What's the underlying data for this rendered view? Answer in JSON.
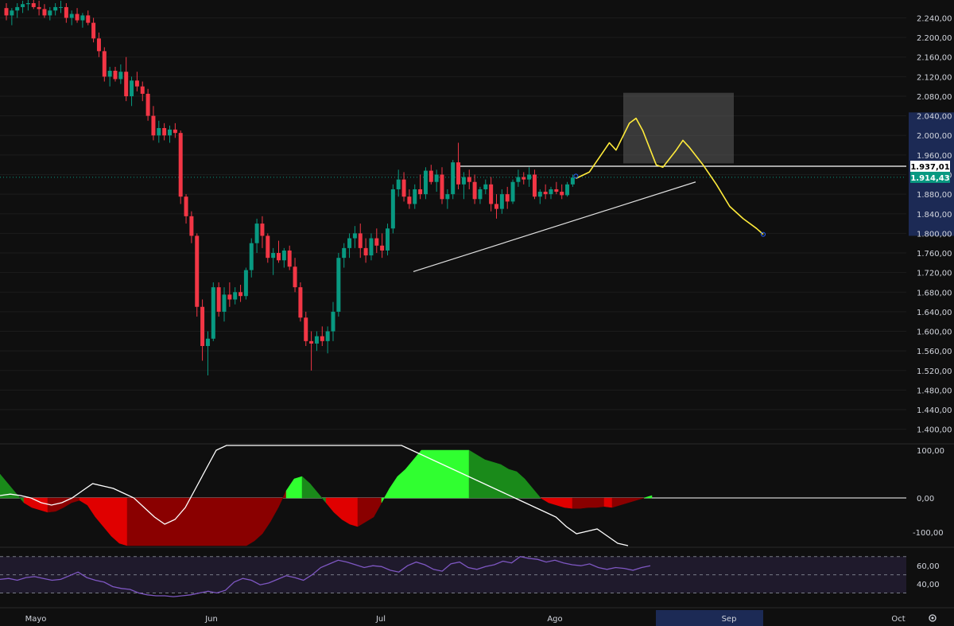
{
  "colors": {
    "background": "#0f0f0f",
    "up": "#089981",
    "down": "#f23645",
    "grid": "#1c1c1c",
    "projection": "#ffeb3b",
    "trendline": "#e0e0e0",
    "resistance": "#ffffff",
    "box": "#5d5d5d",
    "rsi": "#7e57c2",
    "rsi_band": "#2a2140",
    "histogram_up_bright": "#30ff30",
    "histogram_up_dark": "#1a8a1a",
    "histogram_down_bright": "#e00000",
    "histogram_down_dark": "#8a0000",
    "current_price_badge": "#089981",
    "axis_highlight": "#1c2a55"
  },
  "price_axis": {
    "ticks": [
      "2.240,00",
      "2.200,00",
      "2.160,00",
      "2.120,00",
      "2.080,00",
      "2.040,00",
      "2.000,00",
      "1.960,00",
      "1.920,00",
      "1.880,00",
      "1.840,00",
      "1.800,00",
      "1.760,00",
      "1.720,00",
      "1.680,00",
      "1.640,00",
      "1.600,00",
      "1.560,00",
      "1.520,00",
      "1.480,00",
      "1.440,00",
      "1.400,00"
    ],
    "resistance_label": "1.937,01",
    "current_label": "1.914,43"
  },
  "osc_axis": {
    "ticks": [
      "100,00",
      "0,00",
      "-100,00"
    ]
  },
  "rsi_axis": {
    "ticks": [
      "60,00",
      "40,00"
    ]
  },
  "time_axis": {
    "labels": [
      "Mayo",
      "Jun",
      "Jul",
      "Ago",
      "Sep",
      "Oct"
    ]
  },
  "chart_data": {
    "type": "candlestick",
    "ylim": [
      1380,
      2270
    ],
    "resistance_level": 1937.01,
    "last_price": 1914.43,
    "candles": [
      [
        2260,
        2270,
        2235,
        2245
      ],
      [
        2245,
        2260,
        2225,
        2255
      ],
      [
        2255,
        2270,
        2240,
        2262
      ],
      [
        2262,
        2275,
        2250,
        2268
      ],
      [
        2268,
        2280,
        2255,
        2270
      ],
      [
        2270,
        2280,
        2258,
        2262
      ],
      [
        2262,
        2275,
        2245,
        2258
      ],
      [
        2258,
        2268,
        2240,
        2245
      ],
      [
        2245,
        2262,
        2235,
        2255
      ],
      [
        2255,
        2270,
        2245,
        2262
      ],
      [
        2262,
        2275,
        2250,
        2262
      ],
      [
        2262,
        2270,
        2230,
        2240
      ],
      [
        2240,
        2255,
        2225,
        2248
      ],
      [
        2248,
        2260,
        2230,
        2235
      ],
      [
        2235,
        2250,
        2220,
        2245
      ],
      [
        2245,
        2255,
        2225,
        2230
      ],
      [
        2230,
        2240,
        2190,
        2198
      ],
      [
        2198,
        2210,
        2160,
        2172
      ],
      [
        2172,
        2180,
        2110,
        2120
      ],
      [
        2120,
        2140,
        2100,
        2132
      ],
      [
        2132,
        2140,
        2110,
        2115
      ],
      [
        2115,
        2145,
        2105,
        2130
      ],
      [
        2130,
        2160,
        2070,
        2080
      ],
      [
        2080,
        2120,
        2060,
        2112
      ],
      [
        2112,
        2130,
        2090,
        2100
      ],
      [
        2100,
        2110,
        2070,
        2085
      ],
      [
        2085,
        2095,
        2030,
        2040
      ],
      [
        2040,
        2060,
        1990,
        2000
      ],
      [
        2000,
        2030,
        1985,
        2015
      ],
      [
        2015,
        2025,
        1990,
        2000
      ],
      [
        2000,
        2020,
        1985,
        2012
      ],
      [
        2012,
        2025,
        1995,
        2005
      ],
      [
        2005,
        2010,
        1860,
        1875
      ],
      [
        1875,
        1880,
        1820,
        1835
      ],
      [
        1835,
        1845,
        1780,
        1795
      ],
      [
        1795,
        1800,
        1630,
        1650
      ],
      [
        1650,
        1665,
        1540,
        1570
      ],
      [
        1570,
        1600,
        1510,
        1585
      ],
      [
        1585,
        1700,
        1580,
        1690
      ],
      [
        1690,
        1700,
        1630,
        1640
      ],
      [
        1640,
        1690,
        1620,
        1675
      ],
      [
        1675,
        1700,
        1650,
        1665
      ],
      [
        1665,
        1690,
        1655,
        1680
      ],
      [
        1680,
        1695,
        1660,
        1672
      ],
      [
        1672,
        1730,
        1665,
        1725
      ],
      [
        1725,
        1790,
        1710,
        1780
      ],
      [
        1780,
        1830,
        1760,
        1820
      ],
      [
        1820,
        1835,
        1770,
        1795
      ],
      [
        1795,
        1800,
        1740,
        1750
      ],
      [
        1750,
        1770,
        1715,
        1760
      ],
      [
        1760,
        1785,
        1740,
        1745
      ],
      [
        1745,
        1770,
        1730,
        1765
      ],
      [
        1765,
        1775,
        1725,
        1732
      ],
      [
        1732,
        1750,
        1680,
        1690
      ],
      [
        1690,
        1700,
        1620,
        1628
      ],
      [
        1628,
        1640,
        1570,
        1580
      ],
      [
        1580,
        1600,
        1520,
        1575
      ],
      [
        1575,
        1600,
        1560,
        1590
      ],
      [
        1590,
        1610,
        1570,
        1580
      ],
      [
        1580,
        1610,
        1555,
        1600
      ],
      [
        1600,
        1660,
        1580,
        1640
      ],
      [
        1640,
        1760,
        1630,
        1750
      ],
      [
        1750,
        1780,
        1730,
        1770
      ],
      [
        1770,
        1800,
        1750,
        1790
      ],
      [
        1790,
        1815,
        1770,
        1800
      ],
      [
        1800,
        1820,
        1750,
        1770
      ],
      [
        1770,
        1790,
        1740,
        1755
      ],
      [
        1755,
        1800,
        1745,
        1790
      ],
      [
        1790,
        1810,
        1760,
        1775
      ],
      [
        1775,
        1800,
        1750,
        1765
      ],
      [
        1765,
        1820,
        1755,
        1810
      ],
      [
        1810,
        1900,
        1800,
        1890
      ],
      [
        1890,
        1930,
        1875,
        1910
      ],
      [
        1910,
        1925,
        1865,
        1875
      ],
      [
        1875,
        1890,
        1850,
        1860
      ],
      [
        1860,
        1900,
        1850,
        1890
      ],
      [
        1890,
        1920,
        1870,
        1880
      ],
      [
        1880,
        1935,
        1870,
        1928
      ],
      [
        1928,
        1940,
        1900,
        1905
      ],
      [
        1905,
        1930,
        1885,
        1920
      ],
      [
        1920,
        1935,
        1860,
        1870
      ],
      [
        1870,
        1890,
        1850,
        1880
      ],
      [
        1880,
        1950,
        1870,
        1945
      ],
      [
        1945,
        1985,
        1890,
        1900
      ],
      [
        1900,
        1925,
        1870,
        1915
      ],
      [
        1915,
        1930,
        1890,
        1905
      ],
      [
        1905,
        1920,
        1860,
        1870
      ],
      [
        1870,
        1895,
        1860,
        1890
      ],
      [
        1890,
        1910,
        1880,
        1900
      ],
      [
        1900,
        1915,
        1845,
        1860
      ],
      [
        1860,
        1880,
        1830,
        1850
      ],
      [
        1850,
        1890,
        1840,
        1880
      ],
      [
        1880,
        1895,
        1850,
        1865
      ],
      [
        1865,
        1910,
        1860,
        1905
      ],
      [
        1905,
        1930,
        1895,
        1915
      ],
      [
        1915,
        1925,
        1900,
        1910
      ],
      [
        1910,
        1935,
        1895,
        1920
      ],
      [
        1920,
        1930,
        1870,
        1875
      ],
      [
        1875,
        1890,
        1860,
        1885
      ],
      [
        1885,
        1900,
        1870,
        1880
      ],
      [
        1880,
        1895,
        1870,
        1890
      ],
      [
        1890,
        1905,
        1880,
        1885
      ],
      [
        1885,
        1900,
        1870,
        1878
      ],
      [
        1878,
        1905,
        1875,
        1900
      ],
      [
        1900,
        1920,
        1895,
        1914
      ]
    ],
    "projection": [
      [
        0,
        1912
      ],
      [
        2,
        1925
      ],
      [
        4,
        1965
      ],
      [
        5,
        1985
      ],
      [
        6,
        1970
      ],
      [
        8,
        2025
      ],
      [
        9,
        2035
      ],
      [
        10,
        2010
      ],
      [
        12,
        1940
      ],
      [
        13,
        1935
      ],
      [
        15,
        1970
      ],
      [
        16,
        1990
      ],
      [
        17,
        1975
      ],
      [
        19,
        1940
      ],
      [
        21,
        1900
      ],
      [
        23,
        1855
      ],
      [
        25,
        1830
      ],
      [
        27,
        1810
      ],
      [
        28,
        1798
      ]
    ],
    "oscillator": [
      50,
      30,
      10,
      -10,
      -20,
      -25,
      -30,
      -28,
      -20,
      -10,
      -5,
      -15,
      -40,
      -60,
      -80,
      -95,
      -100,
      -100,
      -100,
      -100,
      -100,
      -100,
      -100,
      -100,
      -100,
      -100,
      -100,
      -100,
      -100,
      -100,
      -100,
      -100,
      -90,
      -75,
      -50,
      -20,
      15,
      40,
      45,
      30,
      10,
      -10,
      -30,
      -45,
      -55,
      -60,
      -50,
      -40,
      -10,
      20,
      45,
      60,
      80,
      100,
      100,
      100,
      100,
      100,
      100,
      100,
      90,
      80,
      75,
      70,
      60,
      55,
      40,
      20,
      0,
      -10,
      -15,
      -20,
      -22,
      -22,
      -20,
      -20,
      -18,
      -20,
      -15,
      -10,
      -5,
      0,
      5
    ],
    "osc_line": [
      5,
      8,
      5,
      0,
      -10,
      -15,
      -10,
      0,
      15,
      30,
      25,
      20,
      10,
      0,
      -20,
      -40,
      -55,
      -45,
      -20,
      20,
      60,
      100,
      140,
      180,
      220,
      250,
      260,
      250,
      230,
      210,
      200,
      190,
      180,
      170,
      160,
      150,
      140,
      130,
      120,
      110,
      100,
      90,
      80,
      70,
      60,
      50,
      40,
      30,
      20,
      10,
      0,
      -10,
      -20,
      -30,
      -40,
      -60,
      -75,
      -70,
      -65,
      -80,
      -95,
      -100
    ],
    "rsi": [
      45,
      46,
      44,
      47,
      48,
      46,
      44,
      45,
      49,
      53,
      47,
      44,
      42,
      37,
      35,
      34,
      30,
      28,
      27,
      27,
      26,
      27,
      28,
      30,
      32,
      30,
      33,
      42,
      46,
      44,
      39,
      41,
      45,
      49,
      47,
      44,
      50,
      58,
      62,
      66,
      64,
      61,
      58,
      60,
      59,
      55,
      53,
      60,
      64,
      61,
      56,
      54,
      62,
      64,
      58,
      56,
      59,
      61,
      65,
      63,
      70,
      68,
      67,
      64,
      66,
      63,
      61,
      60,
      62,
      58,
      56,
      58,
      57,
      55,
      58,
      60
    ],
    "rsi_levels": [
      70,
      50,
      30
    ]
  }
}
